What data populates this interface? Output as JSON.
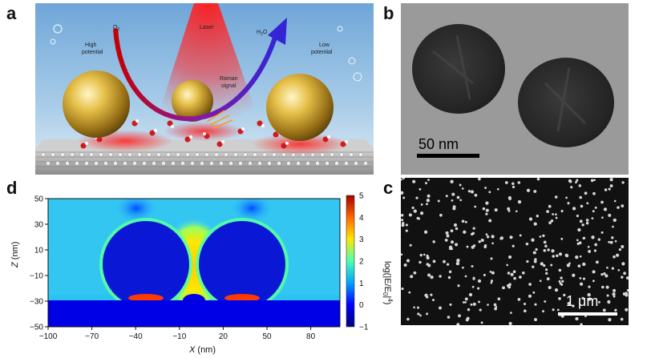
{
  "panels": {
    "a": {
      "letter": "a",
      "labels": {
        "o2": "O",
        "o2_sub": "2",
        "laser": "Laser",
        "h2o": "H",
        "h2o_sub": "2",
        "h2o_end": "O",
        "high_potential_1": "High",
        "high_potential_2": "potential",
        "low_potential_1": "Low",
        "low_potential_2": "potential",
        "raman_1": "Raman",
        "raman_2": "signal"
      }
    },
    "b": {
      "letter": "b",
      "scale_bar": "50 nm"
    },
    "c": {
      "letter": "c",
      "scale_bar": "1 μm"
    },
    "d": {
      "letter": "d",
      "colorbar_label": "log(|E/E0|4)"
    }
  },
  "chart_data": {
    "type": "heatmap",
    "xlabel": "X (nm)",
    "ylabel": "Z (nm)",
    "xlim": [
      -100,
      100
    ],
    "ylim": [
      -50,
      50
    ],
    "x_ticks": [
      -100,
      -70,
      -40,
      -10,
      20,
      50,
      80
    ],
    "y_ticks": [
      50,
      30,
      10,
      -10,
      -30,
      -50
    ],
    "colorbar": {
      "label": "log(|E/E0|4)",
      "range": [
        -1,
        5
      ],
      "ticks": [
        5,
        4,
        3,
        2,
        1,
        0,
        -1
      ]
    },
    "colors": {
      "low": "#0000b4",
      "mid_low": "#00c8ff",
      "mid": "#7cff7c",
      "mid_high": "#ffd400",
      "high": "#d40000"
    }
  }
}
